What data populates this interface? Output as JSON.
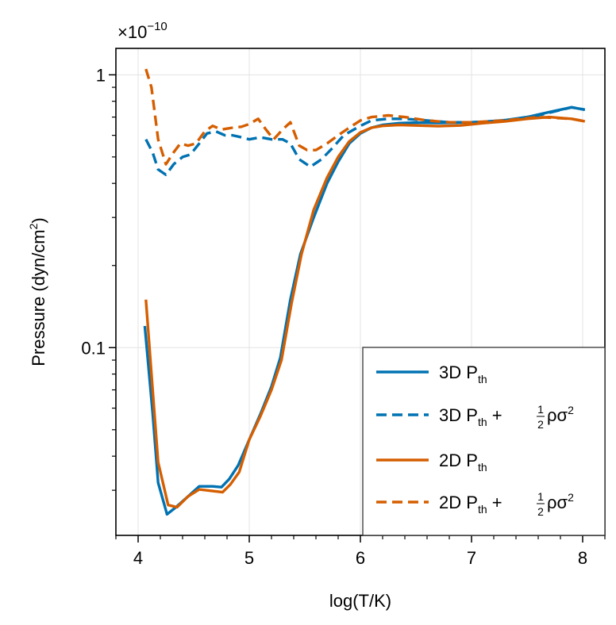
{
  "chart_data": {
    "type": "line",
    "title": "",
    "xlabel": "log(T/K)",
    "ylabel_main": "Pressure (dyn/cm",
    "ylabel_sup": "2",
    "ylabel_close": ")",
    "y_multiplier": "×10",
    "y_multiplier_exp": "−10",
    "xlim": [
      3.8,
      8.2
    ],
    "ylim": [
      0.0205,
      1.25
    ],
    "yscale": "log",
    "grid": true,
    "legend_position": "lower-right",
    "x_ticks": [
      4,
      5,
      6,
      7,
      8
    ],
    "x_tick_labels": [
      "4",
      "5",
      "6",
      "7",
      "8"
    ],
    "y_ticks": [
      0.1,
      1
    ],
    "y_tick_labels": [
      "0.1",
      "1"
    ],
    "legend_entries": [
      "3D P_th",
      "3D P_th + ½ρσ²",
      "2D P_th",
      "2D P_th + ½ρσ²"
    ],
    "legend_text": {
      "p": "P",
      "th": "th",
      "plus": "+",
      "half_num": "1",
      "half_den": "2",
      "rho_sigma": "ρσ",
      "sq": "2",
      "prefix_3d": "3D",
      "prefix_2d": "2D"
    },
    "series": [
      {
        "name": "3D P_th",
        "color": "#0072b2",
        "dash": "solid",
        "x": [
          4.06,
          4.13,
          4.18,
          4.26,
          4.34,
          4.45,
          4.55,
          4.67,
          4.75,
          4.82,
          4.9,
          5.0,
          5.1,
          5.2,
          5.28,
          5.37,
          5.46,
          5.58,
          5.7,
          5.8,
          5.9,
          6.0,
          6.1,
          6.2,
          6.35,
          6.5,
          6.7,
          6.9,
          7.1,
          7.3,
          7.5,
          7.7,
          7.9,
          8.02
        ],
        "values": [
          0.12,
          0.058,
          0.032,
          0.0245,
          0.026,
          0.0285,
          0.031,
          0.031,
          0.0308,
          0.033,
          0.037,
          0.046,
          0.057,
          0.072,
          0.092,
          0.15,
          0.22,
          0.3,
          0.4,
          0.48,
          0.56,
          0.61,
          0.64,
          0.655,
          0.665,
          0.668,
          0.666,
          0.668,
          0.672,
          0.682,
          0.7,
          0.73,
          0.76,
          0.745
        ]
      },
      {
        "name": "3D P_th + ½ρσ²",
        "color": "#0072b2",
        "dash": "dashed",
        "x": [
          4.07,
          4.13,
          4.18,
          4.25,
          4.32,
          4.4,
          4.47,
          4.55,
          4.62,
          4.7,
          4.78,
          4.85,
          4.93,
          5.0,
          5.1,
          5.2,
          5.3,
          5.37,
          5.45,
          5.55,
          5.65,
          5.75,
          5.85,
          6.0,
          6.1,
          6.25,
          6.4,
          6.6,
          6.8,
          7.0,
          7.3,
          7.6,
          7.9,
          8.02
        ],
        "values": [
          0.58,
          0.52,
          0.45,
          0.43,
          0.47,
          0.5,
          0.51,
          0.56,
          0.61,
          0.62,
          0.6,
          0.6,
          0.59,
          0.58,
          0.59,
          0.58,
          0.58,
          0.56,
          0.49,
          0.46,
          0.49,
          0.54,
          0.6,
          0.65,
          0.68,
          0.69,
          0.69,
          0.68,
          0.67,
          0.67,
          0.68,
          0.71,
          0.76,
          0.745
        ]
      },
      {
        "name": "2D P_th",
        "color": "#d55e00",
        "dash": "solid",
        "x": [
          4.07,
          4.12,
          4.18,
          4.27,
          4.35,
          4.45,
          4.55,
          4.67,
          4.76,
          4.83,
          4.91,
          5.0,
          5.1,
          5.2,
          5.29,
          5.38,
          5.47,
          5.58,
          5.7,
          5.8,
          5.9,
          6.0,
          6.1,
          6.2,
          6.35,
          6.5,
          6.7,
          6.9,
          7.1,
          7.3,
          7.5,
          7.7,
          7.9,
          8.02
        ],
        "values": [
          0.15,
          0.08,
          0.038,
          0.0265,
          0.026,
          0.0285,
          0.0302,
          0.0298,
          0.0295,
          0.0315,
          0.035,
          0.046,
          0.056,
          0.07,
          0.09,
          0.145,
          0.22,
          0.32,
          0.42,
          0.5,
          0.57,
          0.615,
          0.64,
          0.65,
          0.655,
          0.652,
          0.648,
          0.652,
          0.665,
          0.675,
          0.69,
          0.7,
          0.69,
          0.675
        ]
      },
      {
        "name": "2D P_th + ½ρσ²",
        "color": "#d55e00",
        "dash": "dashed",
        "x": [
          4.07,
          4.12,
          4.18,
          4.25,
          4.32,
          4.38,
          4.45,
          4.52,
          4.6,
          4.67,
          4.75,
          4.85,
          4.93,
          5.0,
          5.08,
          5.15,
          5.22,
          5.3,
          5.37,
          5.45,
          5.52,
          5.6,
          5.7,
          5.8,
          5.9,
          6.0,
          6.1,
          6.25,
          6.4,
          6.6,
          6.8,
          7.0,
          7.3,
          7.6,
          7.9,
          8.02
        ],
        "values": [
          1.05,
          0.9,
          0.58,
          0.47,
          0.52,
          0.56,
          0.55,
          0.56,
          0.62,
          0.65,
          0.63,
          0.64,
          0.645,
          0.66,
          0.69,
          0.63,
          0.58,
          0.63,
          0.67,
          0.55,
          0.53,
          0.53,
          0.56,
          0.6,
          0.64,
          0.68,
          0.7,
          0.71,
          0.7,
          0.68,
          0.67,
          0.67,
          0.68,
          0.7,
          0.69,
          0.675
        ]
      }
    ]
  }
}
